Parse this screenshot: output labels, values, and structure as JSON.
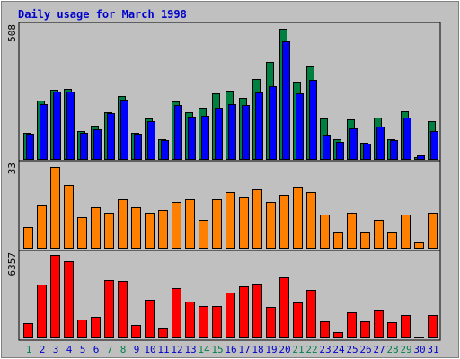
{
  "title": "Daily usage for March 1998",
  "colors": {
    "background": "#c0c0c0",
    "title": "#0000cc",
    "weekday_label": "#0000cc",
    "weekend_label": "#00804f",
    "hits": "#008040",
    "files": "#0000ff",
    "pages": "#ff8000",
    "kbytes": "#ff0000"
  },
  "chart_data": [
    {
      "type": "bar",
      "panel": "top",
      "max_label": "508",
      "ylim": [
        0,
        508
      ],
      "categories": [
        "1",
        "2",
        "3",
        "4",
        "5",
        "6",
        "7",
        "8",
        "9",
        "10",
        "11",
        "12",
        "13",
        "14",
        "15",
        "16",
        "17",
        "18",
        "19",
        "20",
        "21",
        "22",
        "23",
        "24",
        "25",
        "26",
        "27",
        "28",
        "29",
        "30",
        "31"
      ],
      "weekend_days": [
        "1",
        "7",
        "8",
        "14",
        "15",
        "21",
        "22",
        "28",
        "29"
      ],
      "series": [
        {
          "key": "hits",
          "values": [
            98,
            223,
            263,
            268,
            106,
            126,
            177,
            239,
            100,
            155,
            76,
            220,
            178,
            196,
            250,
            262,
            232,
            306,
            370,
            498,
            296,
            352,
            156,
            76,
            152,
            62,
            158,
            76,
            182,
            8,
            143
          ]
        },
        {
          "key": "files",
          "values": [
            95,
            210,
            257,
            258,
            98,
            113,
            174,
            226,
            96,
            144,
            71,
            206,
            160,
            166,
            195,
            208,
            205,
            253,
            279,
            450,
            250,
            303,
            93,
            66,
            118,
            57,
            124,
            72,
            158,
            14,
            105
          ]
        }
      ]
    },
    {
      "type": "bar",
      "panel": "middle",
      "max_label": "33",
      "ylim": [
        0,
        33
      ],
      "categories": [
        "1",
        "2",
        "3",
        "4",
        "5",
        "6",
        "7",
        "8",
        "9",
        "10",
        "11",
        "12",
        "13",
        "14",
        "15",
        "16",
        "17",
        "18",
        "19",
        "20",
        "21",
        "22",
        "23",
        "24",
        "25",
        "26",
        "27",
        "28",
        "29",
        "30",
        "31"
      ],
      "series": [
        {
          "key": "pages",
          "values": [
            8,
            17,
            32,
            25,
            12,
            16,
            14,
            19,
            16,
            14,
            15,
            18,
            19,
            11,
            19,
            22,
            20,
            23,
            18,
            21,
            24,
            22,
            13,
            6,
            14,
            6,
            11,
            6,
            13,
            2,
            14
          ]
        }
      ]
    },
    {
      "type": "bar",
      "panel": "bottom",
      "max_label": "6357",
      "ylim": [
        0,
        6357
      ],
      "categories": [
        "1",
        "2",
        "3",
        "4",
        "5",
        "6",
        "7",
        "8",
        "9",
        "10",
        "11",
        "12",
        "13",
        "14",
        "15",
        "16",
        "17",
        "18",
        "19",
        "20",
        "21",
        "22",
        "23",
        "24",
        "25",
        "26",
        "27",
        "28",
        "29",
        "30",
        "31"
      ],
      "series": [
        {
          "key": "kbytes",
          "values": [
            1105,
            4064,
            6300,
            5800,
            1400,
            1600,
            4350,
            4320,
            950,
            2900,
            660,
            3780,
            2750,
            2400,
            2400,
            3400,
            3900,
            4100,
            2350,
            4600,
            2700,
            3600,
            1200,
            420,
            1940,
            1200,
            2100,
            1150,
            1700,
            80,
            1700
          ]
        }
      ]
    }
  ]
}
